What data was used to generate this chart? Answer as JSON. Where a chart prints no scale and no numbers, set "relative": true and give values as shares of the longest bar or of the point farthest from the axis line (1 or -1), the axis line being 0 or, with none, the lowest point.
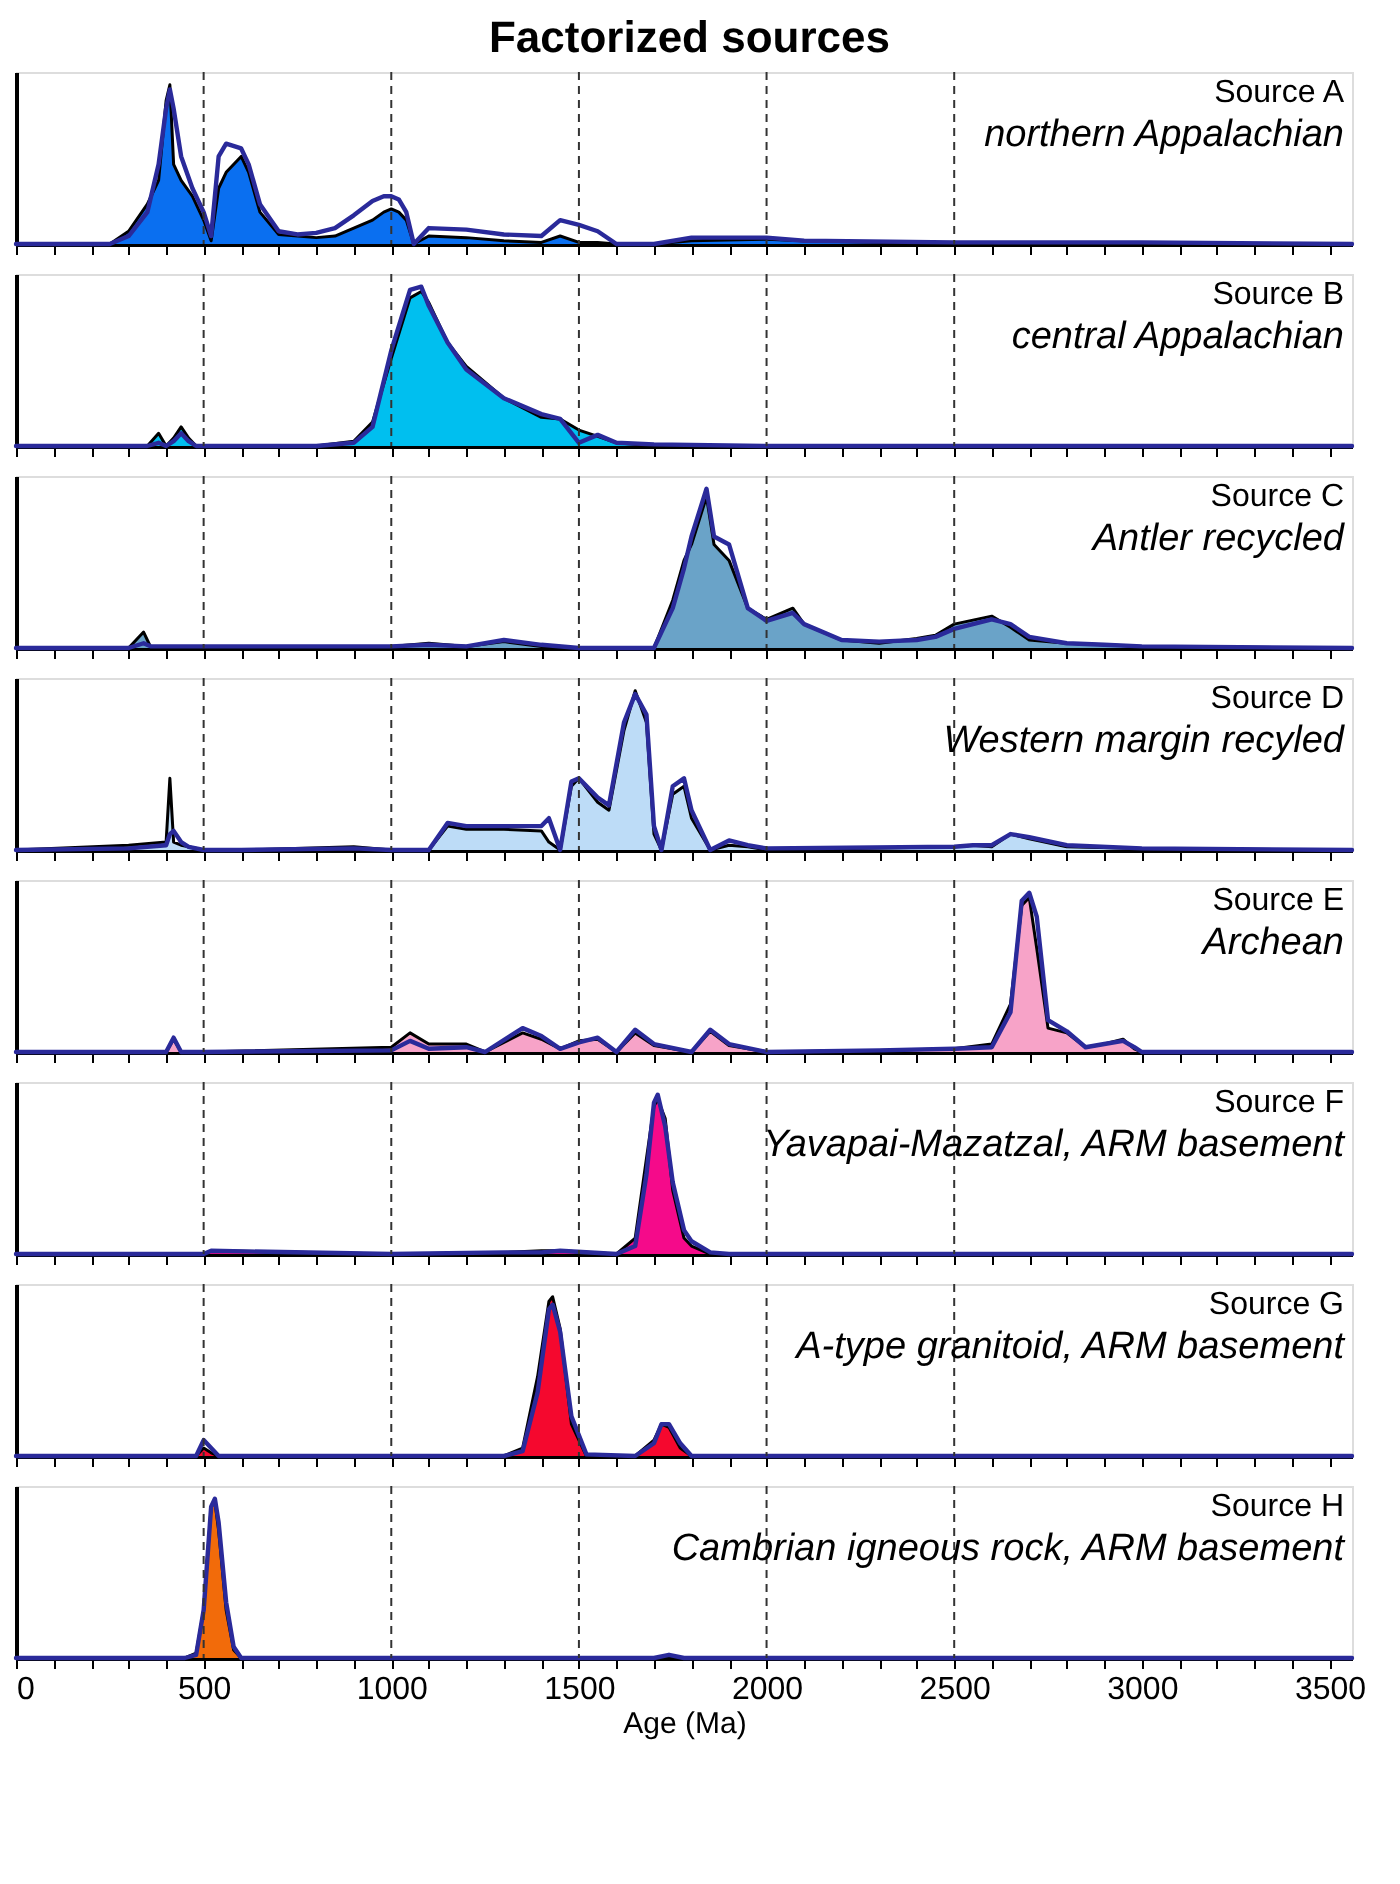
{
  "chart_data": [
    {
      "type": "area",
      "relative": true,
      "title": "Source A",
      "subtitle": "northern Appalachian",
      "annotations": [
        "Factorized sources"
      ],
      "tick_labels": false,
      "xlim": [
        0,
        3560
      ],
      "xticks": [
        0,
        {
          "value": 100,
          "label": null
        },
        {
          "value": 200,
          "label": null
        },
        {
          "value": 300,
          "label": null
        },
        {
          "value": 400,
          "label": null
        },
        500,
        {
          "value": 600,
          "label": null
        },
        {
          "value": 700,
          "label": null
        },
        {
          "value": 800,
          "label": null
        },
        {
          "value": 900,
          "label": null
        },
        1000,
        {
          "value": 1100,
          "label": null
        },
        {
          "value": 1200,
          "label": null
        },
        {
          "value": 1300,
          "label": null
        },
        {
          "value": 1400,
          "label": null
        },
        1500,
        {
          "value": 1600,
          "label": null
        },
        {
          "value": 1700,
          "label": null
        },
        {
          "value": 1800,
          "label": null
        },
        {
          "value": 1900,
          "label": null
        },
        2000,
        {
          "value": 2100,
          "label": null
        },
        {
          "value": 2200,
          "label": null
        },
        {
          "value": 2300,
          "label": null
        },
        {
          "value": 2400,
          "label": null
        },
        2500,
        {
          "value": 2600,
          "label": null
        },
        {
          "value": 2700,
          "label": null
        },
        {
          "value": 2800,
          "label": null
        },
        {
          "value": 2900,
          "label": null
        },
        3000,
        {
          "value": 3100,
          "label": null
        },
        {
          "value": 3200,
          "label": null
        },
        {
          "value": 3300,
          "label": null
        },
        {
          "value": 3400,
          "label": null
        },
        3500
      ],
      "ref_lines": [
        {
          "axis": "x",
          "value": 500,
          "line_style": "dashed"
        },
        {
          "axis": "x",
          "value": 1000,
          "line_style": "dashed"
        },
        {
          "axis": "x",
          "value": 1500,
          "line_style": "dashed"
        },
        {
          "axis": "x",
          "value": 2000,
          "line_style": "dashed"
        },
        {
          "axis": "x",
          "value": 2500,
          "line_style": "dashed"
        }
      ],
      "x": [
        0,
        250,
        300,
        350,
        380,
        400,
        410,
        420,
        440,
        470,
        500,
        520,
        540,
        560,
        600,
        620,
        650,
        700,
        750,
        800,
        850,
        900,
        950,
        980,
        1000,
        1020,
        1040,
        1060,
        1100,
        1200,
        1300,
        1400,
        1450,
        1500,
        1550,
        1600,
        1700,
        1800,
        2000,
        2100,
        2500,
        3000,
        3560
      ],
      "series": [
        {
          "type": "area",
          "color": "#0a6ff0",
          "values": [
            0,
            0,
            0.08,
            0.25,
            0.4,
            0.9,
            1.0,
            0.5,
            0.4,
            0.3,
            0.15,
            0.02,
            0.35,
            0.45,
            0.55,
            0.45,
            0.2,
            0.06,
            0.05,
            0.04,
            0.05,
            0.1,
            0.15,
            0.2,
            0.22,
            0.2,
            0.15,
            0,
            0.05,
            0.04,
            0.02,
            0.01,
            0.05,
            0.01,
            0.01,
            0,
            0,
            0.02,
            0.03,
            0.02,
            0,
            0,
            0
          ]
        },
        {
          "type": "line",
          "color": "#2a2a9a",
          "values": [
            0,
            0,
            0.05,
            0.2,
            0.5,
            0.85,
            0.97,
            0.85,
            0.55,
            0.35,
            0.2,
            0.05,
            0.55,
            0.63,
            0.6,
            0.5,
            0.25,
            0.08,
            0.06,
            0.07,
            0.1,
            0.18,
            0.27,
            0.3,
            0.3,
            0.28,
            0.2,
            0,
            0.1,
            0.09,
            0.06,
            0.05,
            0.15,
            0.12,
            0.08,
            0,
            0,
            0.04,
            0.04,
            0.02,
            0.01,
            0.01,
            0
          ]
        }
      ]
    },
    {
      "type": "area",
      "relative": true,
      "title": "Source B",
      "subtitle": "central Appalachian",
      "tick_labels": false,
      "xlim": [
        0,
        3560
      ],
      "xticks": [
        0,
        {
          "value": 100,
          "label": null
        },
        {
          "value": 200,
          "label": null
        },
        {
          "value": 300,
          "label": null
        },
        {
          "value": 400,
          "label": null
        },
        500,
        {
          "value": 600,
          "label": null
        },
        {
          "value": 700,
          "label": null
        },
        {
          "value": 800,
          "label": null
        },
        {
          "value": 900,
          "label": null
        },
        1000,
        {
          "value": 1100,
          "label": null
        },
        {
          "value": 1200,
          "label": null
        },
        {
          "value": 1300,
          "label": null
        },
        {
          "value": 1400,
          "label": null
        },
        1500,
        {
          "value": 1600,
          "label": null
        },
        {
          "value": 1700,
          "label": null
        },
        {
          "value": 1800,
          "label": null
        },
        {
          "value": 1900,
          "label": null
        },
        2000,
        {
          "value": 2100,
          "label": null
        },
        {
          "value": 2200,
          "label": null
        },
        {
          "value": 2300,
          "label": null
        },
        {
          "value": 2400,
          "label": null
        },
        2500,
        {
          "value": 2600,
          "label": null
        },
        {
          "value": 2700,
          "label": null
        },
        {
          "value": 2800,
          "label": null
        },
        {
          "value": 2900,
          "label": null
        },
        3000,
        {
          "value": 3100,
          "label": null
        },
        {
          "value": 3200,
          "label": null
        },
        {
          "value": 3300,
          "label": null
        },
        {
          "value": 3400,
          "label": null
        },
        3500
      ],
      "ref_lines": [
        {
          "axis": "x",
          "value": 500,
          "line_style": "dashed"
        },
        {
          "axis": "x",
          "value": 1000,
          "line_style": "dashed"
        },
        {
          "axis": "x",
          "value": 1500,
          "line_style": "dashed"
        },
        {
          "axis": "x",
          "value": 2000,
          "line_style": "dashed"
        },
        {
          "axis": "x",
          "value": 2500,
          "line_style": "dashed"
        }
      ],
      "x": [
        0,
        350,
        380,
        400,
        420,
        440,
        460,
        480,
        500,
        800,
        900,
        950,
        1000,
        1050,
        1080,
        1100,
        1150,
        1200,
        1300,
        1400,
        1450,
        1500,
        1550,
        1600,
        1700,
        2000,
        3560
      ],
      "series": [
        {
          "type": "area",
          "color": "#00bfef",
          "values": [
            0,
            0,
            0.08,
            0,
            0.05,
            0.12,
            0.05,
            0,
            0,
            0,
            0.03,
            0.15,
            0.55,
            0.93,
            0.97,
            0.9,
            0.65,
            0.5,
            0.3,
            0.18,
            0.17,
            0.1,
            0.06,
            0.02,
            0,
            0,
            0
          ]
        },
        {
          "type": "line",
          "color": "#2a2a9a",
          "values": [
            0,
            0,
            0.02,
            0,
            0.03,
            0.08,
            0.03,
            0,
            0,
            0,
            0.02,
            0.12,
            0.6,
            0.98,
            1.0,
            0.88,
            0.65,
            0.48,
            0.3,
            0.2,
            0.17,
            0.02,
            0.07,
            0.02,
            0.01,
            0,
            0
          ]
        }
      ]
    },
    {
      "type": "area",
      "relative": true,
      "title": "Source C",
      "subtitle": "Antler recycled",
      "tick_labels": false,
      "xlim": [
        0,
        3560
      ],
      "xticks": [
        0,
        {
          "value": 100,
          "label": null
        },
        {
          "value": 200,
          "label": null
        },
        {
          "value": 300,
          "label": null
        },
        {
          "value": 400,
          "label": null
        },
        500,
        {
          "value": 600,
          "label": null
        },
        {
          "value": 700,
          "label": null
        },
        {
          "value": 800,
          "label": null
        },
        {
          "value": 900,
          "label": null
        },
        1000,
        {
          "value": 1100,
          "label": null
        },
        {
          "value": 1200,
          "label": null
        },
        {
          "value": 1300,
          "label": null
        },
        {
          "value": 1400,
          "label": null
        },
        1500,
        {
          "value": 1600,
          "label": null
        },
        {
          "value": 1700,
          "label": null
        },
        {
          "value": 1800,
          "label": null
        },
        {
          "value": 1900,
          "label": null
        },
        2000,
        {
          "value": 2100,
          "label": null
        },
        {
          "value": 2200,
          "label": null
        },
        {
          "value": 2300,
          "label": null
        },
        {
          "value": 2400,
          "label": null
        },
        2500,
        {
          "value": 2600,
          "label": null
        },
        {
          "value": 2700,
          "label": null
        },
        {
          "value": 2800,
          "label": null
        },
        {
          "value": 2900,
          "label": null
        },
        3000,
        {
          "value": 3100,
          "label": null
        },
        {
          "value": 3200,
          "label": null
        },
        {
          "value": 3300,
          "label": null
        },
        {
          "value": 3400,
          "label": null
        },
        3500
      ],
      "ref_lines": [
        {
          "axis": "x",
          "value": 500,
          "line_style": "dashed"
        },
        {
          "axis": "x",
          "value": 1000,
          "line_style": "dashed"
        },
        {
          "axis": "x",
          "value": 1500,
          "line_style": "dashed"
        },
        {
          "axis": "x",
          "value": 2000,
          "line_style": "dashed"
        },
        {
          "axis": "x",
          "value": 2500,
          "line_style": "dashed"
        }
      ],
      "x": [
        0,
        300,
        340,
        360,
        500,
        1000,
        1100,
        1200,
        1300,
        1400,
        1500,
        1700,
        1750,
        1780,
        1800,
        1840,
        1860,
        1900,
        1950,
        2000,
        2070,
        2100,
        2200,
        2300,
        2400,
        2450,
        2500,
        2600,
        2650,
        2700,
        2800,
        2900,
        3000,
        3560
      ],
      "series": [
        {
          "type": "area",
          "color": "#6aa3c8",
          "values": [
            0,
            0,
            0.1,
            0,
            0.01,
            0.01,
            0.03,
            0.01,
            0.04,
            0.01,
            0,
            0,
            0.3,
            0.55,
            0.65,
            0.95,
            0.65,
            0.55,
            0.25,
            0.18,
            0.25,
            0.15,
            0.05,
            0.03,
            0.06,
            0.08,
            0.15,
            0.2,
            0.13,
            0.05,
            0.03,
            0.02,
            0.01,
            0
          ]
        },
        {
          "type": "line",
          "color": "#2a2a9a",
          "values": [
            0,
            0,
            0.03,
            0.01,
            0.01,
            0.01,
            0.02,
            0.01,
            0.05,
            0.02,
            0,
            0,
            0.25,
            0.5,
            0.7,
            1.0,
            0.7,
            0.65,
            0.25,
            0.17,
            0.22,
            0.15,
            0.05,
            0.04,
            0.05,
            0.07,
            0.12,
            0.18,
            0.15,
            0.07,
            0.03,
            0.02,
            0.01,
            0
          ]
        }
      ]
    },
    {
      "type": "area",
      "relative": true,
      "title": "Source D",
      "subtitle": "Western margin recyled",
      "tick_labels": false,
      "xlim": [
        0,
        3560
      ],
      "xticks": [
        0,
        {
          "value": 100,
          "label": null
        },
        {
          "value": 200,
          "label": null
        },
        {
          "value": 300,
          "label": null
        },
        {
          "value": 400,
          "label": null
        },
        500,
        {
          "value": 600,
          "label": null
        },
        {
          "value": 700,
          "label": null
        },
        {
          "value": 800,
          "label": null
        },
        {
          "value": 900,
          "label": null
        },
        1000,
        {
          "value": 1100,
          "label": null
        },
        {
          "value": 1200,
          "label": null
        },
        {
          "value": 1300,
          "label": null
        },
        {
          "value": 1400,
          "label": null
        },
        1500,
        {
          "value": 1600,
          "label": null
        },
        {
          "value": 1700,
          "label": null
        },
        {
          "value": 1800,
          "label": null
        },
        {
          "value": 1900,
          "label": null
        },
        2000,
        {
          "value": 2100,
          "label": null
        },
        {
          "value": 2200,
          "label": null
        },
        {
          "value": 2300,
          "label": null
        },
        {
          "value": 2400,
          "label": null
        },
        2500,
        {
          "value": 2600,
          "label": null
        },
        {
          "value": 2700,
          "label": null
        },
        {
          "value": 2800,
          "label": null
        },
        {
          "value": 2900,
          "label": null
        },
        3000,
        {
          "value": 3100,
          "label": null
        },
        {
          "value": 3200,
          "label": null
        },
        {
          "value": 3300,
          "label": null
        },
        {
          "value": 3400,
          "label": null
        },
        3500
      ],
      "ref_lines": [
        {
          "axis": "x",
          "value": 500,
          "line_style": "dashed"
        },
        {
          "axis": "x",
          "value": 1000,
          "line_style": "dashed"
        },
        {
          "axis": "x",
          "value": 1500,
          "line_style": "dashed"
        },
        {
          "axis": "x",
          "value": 2000,
          "line_style": "dashed"
        },
        {
          "axis": "x",
          "value": 2500,
          "line_style": "dashed"
        }
      ],
      "x": [
        0,
        300,
        400,
        410,
        420,
        440,
        460,
        500,
        600,
        900,
        1000,
        1100,
        1150,
        1200,
        1300,
        1400,
        1420,
        1450,
        1480,
        1500,
        1550,
        1580,
        1620,
        1650,
        1680,
        1700,
        1720,
        1750,
        1780,
        1800,
        1850,
        1900,
        1950,
        2000,
        2500,
        2550,
        2600,
        2650,
        2700,
        2800,
        3000,
        3560
      ],
      "series": [
        {
          "type": "area",
          "color": "#bddcf7",
          "values": [
            0,
            0.03,
            0.05,
            0.45,
            0.05,
            0.03,
            0.02,
            0,
            0,
            0.02,
            0,
            0,
            0.15,
            0.13,
            0.13,
            0.12,
            0.05,
            0,
            0.4,
            0.45,
            0.3,
            0.25,
            0.75,
            1.0,
            0.8,
            0.1,
            0,
            0.35,
            0.4,
            0.2,
            0,
            0.03,
            0.02,
            0,
            0.02,
            0.03,
            0.02,
            0.1,
            0.07,
            0.02,
            0.01,
            0
          ]
        },
        {
          "type": "line",
          "color": "#2a2a9a",
          "values": [
            0,
            0.01,
            0.03,
            0.1,
            0.12,
            0.05,
            0.02,
            0,
            0,
            0.01,
            0,
            0,
            0.17,
            0.15,
            0.15,
            0.15,
            0.2,
            0,
            0.43,
            0.45,
            0.33,
            0.28,
            0.8,
            0.98,
            0.85,
            0.15,
            0,
            0.4,
            0.45,
            0.25,
            0,
            0.06,
            0.03,
            0.01,
            0.02,
            0.03,
            0.03,
            0.1,
            0.08,
            0.03,
            0.01,
            0
          ]
        }
      ]
    },
    {
      "type": "area",
      "relative": true,
      "title": "Source E",
      "subtitle": "Archean",
      "tick_labels": false,
      "xlim": [
        0,
        3560
      ],
      "xticks": [
        0,
        {
          "value": 100,
          "label": null
        },
        {
          "value": 200,
          "label": null
        },
        {
          "value": 300,
          "label": null
        },
        {
          "value": 400,
          "label": null
        },
        500,
        {
          "value": 600,
          "label": null
        },
        {
          "value": 700,
          "label": null
        },
        {
          "value": 800,
          "label": null
        },
        {
          "value": 900,
          "label": null
        },
        1000,
        {
          "value": 1100,
          "label": null
        },
        {
          "value": 1200,
          "label": null
        },
        {
          "value": 1300,
          "label": null
        },
        {
          "value": 1400,
          "label": null
        },
        1500,
        {
          "value": 1600,
          "label": null
        },
        {
          "value": 1700,
          "label": null
        },
        {
          "value": 1800,
          "label": null
        },
        {
          "value": 1900,
          "label": null
        },
        2000,
        {
          "value": 2100,
          "label": null
        },
        {
          "value": 2200,
          "label": null
        },
        {
          "value": 2300,
          "label": null
        },
        {
          "value": 2400,
          "label": null
        },
        2500,
        {
          "value": 2600,
          "label": null
        },
        {
          "value": 2700,
          "label": null
        },
        {
          "value": 2800,
          "label": null
        },
        {
          "value": 2900,
          "label": null
        },
        3000,
        {
          "value": 3100,
          "label": null
        },
        {
          "value": 3200,
          "label": null
        },
        {
          "value": 3300,
          "label": null
        },
        {
          "value": 3400,
          "label": null
        },
        3500
      ],
      "ref_lines": [
        {
          "axis": "x",
          "value": 500,
          "line_style": "dashed"
        },
        {
          "axis": "x",
          "value": 1000,
          "line_style": "dashed"
        },
        {
          "axis": "x",
          "value": 1500,
          "line_style": "dashed"
        },
        {
          "axis": "x",
          "value": 2000,
          "line_style": "dashed"
        },
        {
          "axis": "x",
          "value": 2500,
          "line_style": "dashed"
        }
      ],
      "x": [
        0,
        400,
        420,
        440,
        500,
        1000,
        1050,
        1100,
        1200,
        1250,
        1350,
        1400,
        1450,
        1500,
        1550,
        1600,
        1650,
        1700,
        1800,
        1850,
        1900,
        2000,
        2300,
        2500,
        2600,
        2650,
        2680,
        2700,
        2720,
        2750,
        2800,
        2850,
        2900,
        2950,
        2980,
        3000,
        3560
      ],
      "series": [
        {
          "type": "area",
          "color": "#f7a3c8",
          "values": [
            0,
            0,
            0.08,
            0,
            0,
            0.03,
            0.12,
            0.05,
            0.05,
            0,
            0.12,
            0.08,
            0.02,
            0.07,
            0.08,
            0,
            0.12,
            0.04,
            0,
            0.13,
            0.04,
            0,
            0.01,
            0.02,
            0.05,
            0.3,
            0.92,
            0.97,
            0.65,
            0.15,
            0.12,
            0.03,
            0.05,
            0.08,
            0.02,
            0,
            0
          ]
        },
        {
          "type": "line",
          "color": "#2a2a9a",
          "values": [
            0,
            0,
            0.09,
            0,
            0,
            0.01,
            0.07,
            0.02,
            0.03,
            0,
            0.15,
            0.1,
            0.02,
            0.06,
            0.09,
            0,
            0.14,
            0.05,
            0,
            0.14,
            0.05,
            0,
            0.01,
            0.02,
            0.03,
            0.25,
            0.95,
            1.0,
            0.85,
            0.2,
            0.13,
            0.03,
            0.05,
            0.07,
            0.03,
            0,
            0
          ]
        }
      ]
    },
    {
      "type": "area",
      "relative": true,
      "title": "Source F",
      "subtitle": "Yavapai-Mazatzal, ARM basement",
      "tick_labels": false,
      "xlim": [
        0,
        3560
      ],
      "xticks": [
        0,
        {
          "value": 100,
          "label": null
        },
        {
          "value": 200,
          "label": null
        },
        {
          "value": 300,
          "label": null
        },
        {
          "value": 400,
          "label": null
        },
        500,
        {
          "value": 600,
          "label": null
        },
        {
          "value": 700,
          "label": null
        },
        {
          "value": 800,
          "label": null
        },
        {
          "value": 900,
          "label": null
        },
        1000,
        {
          "value": 1100,
          "label": null
        },
        {
          "value": 1200,
          "label": null
        },
        {
          "value": 1300,
          "label": null
        },
        {
          "value": 1400,
          "label": null
        },
        1500,
        {
          "value": 1600,
          "label": null
        },
        {
          "value": 1700,
          "label": null
        },
        {
          "value": 1800,
          "label": null
        },
        {
          "value": 1900,
          "label": null
        },
        2000,
        {
          "value": 2100,
          "label": null
        },
        {
          "value": 2200,
          "label": null
        },
        {
          "value": 2300,
          "label": null
        },
        {
          "value": 2400,
          "label": null
        },
        2500,
        {
          "value": 2600,
          "label": null
        },
        {
          "value": 2700,
          "label": null
        },
        {
          "value": 2800,
          "label": null
        },
        {
          "value": 2900,
          "label": null
        },
        3000,
        {
          "value": 3100,
          "label": null
        },
        {
          "value": 3200,
          "label": null
        },
        {
          "value": 3300,
          "label": null
        },
        {
          "value": 3400,
          "label": null
        },
        3500
      ],
      "ref_lines": [
        {
          "axis": "x",
          "value": 500,
          "line_style": "dashed"
        },
        {
          "axis": "x",
          "value": 1000,
          "line_style": "dashed"
        },
        {
          "axis": "x",
          "value": 1500,
          "line_style": "dashed"
        },
        {
          "axis": "x",
          "value": 2000,
          "line_style": "dashed"
        },
        {
          "axis": "x",
          "value": 2500,
          "line_style": "dashed"
        }
      ],
      "x": [
        0,
        500,
        520,
        1000,
        1300,
        1400,
        1450,
        1600,
        1650,
        1680,
        1700,
        1710,
        1730,
        1750,
        1780,
        1800,
        1850,
        1900,
        3560
      ],
      "series": [
        {
          "type": "area",
          "color": "#f50a8a",
          "values": [
            0,
            0,
            0.02,
            0,
            0.01,
            0.02,
            0.02,
            0,
            0.1,
            0.6,
            0.93,
            0.97,
            0.85,
            0.4,
            0.1,
            0.05,
            0,
            0,
            0
          ]
        },
        {
          "type": "line",
          "color": "#2a2a9a",
          "values": [
            0,
            0,
            0.02,
            0,
            0.01,
            0.01,
            0.02,
            0,
            0.05,
            0.5,
            0.95,
            1.0,
            0.8,
            0.45,
            0.15,
            0.08,
            0.01,
            0,
            0
          ]
        }
      ]
    },
    {
      "type": "area",
      "relative": true,
      "title": "Source G",
      "subtitle": "A-type granitoid, ARM basement",
      "tick_labels": false,
      "xlim": [
        0,
        3560
      ],
      "xticks": [
        0,
        {
          "value": 100,
          "label": null
        },
        {
          "value": 200,
          "label": null
        },
        {
          "value": 300,
          "label": null
        },
        {
          "value": 400,
          "label": null
        },
        500,
        {
          "value": 600,
          "label": null
        },
        {
          "value": 700,
          "label": null
        },
        {
          "value": 800,
          "label": null
        },
        {
          "value": 900,
          "label": null
        },
        1000,
        {
          "value": 1100,
          "label": null
        },
        {
          "value": 1200,
          "label": null
        },
        {
          "value": 1300,
          "label": null
        },
        {
          "value": 1400,
          "label": null
        },
        1500,
        {
          "value": 1600,
          "label": null
        },
        {
          "value": 1700,
          "label": null
        },
        {
          "value": 1800,
          "label": null
        },
        {
          "value": 1900,
          "label": null
        },
        2000,
        {
          "value": 2100,
          "label": null
        },
        {
          "value": 2200,
          "label": null
        },
        {
          "value": 2300,
          "label": null
        },
        {
          "value": 2400,
          "label": null
        },
        2500,
        {
          "value": 2600,
          "label": null
        },
        {
          "value": 2700,
          "label": null
        },
        {
          "value": 2800,
          "label": null
        },
        {
          "value": 2900,
          "label": null
        },
        3000,
        {
          "value": 3100,
          "label": null
        },
        {
          "value": 3200,
          "label": null
        },
        {
          "value": 3300,
          "label": null
        },
        {
          "value": 3400,
          "label": null
        },
        3500
      ],
      "ref_lines": [
        {
          "axis": "x",
          "value": 500,
          "line_style": "dashed"
        },
        {
          "axis": "x",
          "value": 1000,
          "line_style": "dashed"
        },
        {
          "axis": "x",
          "value": 1500,
          "line_style": "dashed"
        },
        {
          "axis": "x",
          "value": 2000,
          "line_style": "dashed"
        },
        {
          "axis": "x",
          "value": 2500,
          "line_style": "dashed"
        }
      ],
      "x": [
        0,
        480,
        500,
        520,
        540,
        1000,
        1300,
        1350,
        1390,
        1420,
        1430,
        1450,
        1480,
        1520,
        1650,
        1700,
        1720,
        1740,
        1770,
        1800,
        3560
      ],
      "series": [
        {
          "type": "area",
          "color": "#f5082e",
          "values": [
            0,
            0,
            0.05,
            0.02,
            0,
            0,
            0,
            0.05,
            0.5,
            0.97,
            1.0,
            0.8,
            0.2,
            0,
            0,
            0.1,
            0.2,
            0.18,
            0.05,
            0,
            0
          ]
        },
        {
          "type": "line",
          "color": "#2a2a9a",
          "values": [
            0,
            0,
            0.1,
            0.05,
            0,
            0,
            0,
            0.03,
            0.4,
            0.92,
            0.95,
            0.78,
            0.25,
            0.01,
            0,
            0.08,
            0.2,
            0.2,
            0.08,
            0,
            0
          ]
        }
      ]
    },
    {
      "type": "area",
      "relative": true,
      "title": "Source H",
      "subtitle": "Cambrian igneous rock, ARM basement",
      "tick_labels": "x",
      "xlabel": "Age (Ma)",
      "xlim": [
        0,
        3560
      ],
      "xticks": [
        0,
        {
          "value": 100,
          "label": null
        },
        {
          "value": 200,
          "label": null
        },
        {
          "value": 300,
          "label": null
        },
        {
          "value": 400,
          "label": null
        },
        500,
        {
          "value": 600,
          "label": null
        },
        {
          "value": 700,
          "label": null
        },
        {
          "value": 800,
          "label": null
        },
        {
          "value": 900,
          "label": null
        },
        1000,
        {
          "value": 1100,
          "label": null
        },
        {
          "value": 1200,
          "label": null
        },
        {
          "value": 1300,
          "label": null
        },
        {
          "value": 1400,
          "label": null
        },
        1500,
        {
          "value": 1600,
          "label": null
        },
        {
          "value": 1700,
          "label": null
        },
        {
          "value": 1800,
          "label": null
        },
        {
          "value": 1900,
          "label": null
        },
        2000,
        {
          "value": 2100,
          "label": null
        },
        {
          "value": 2200,
          "label": null
        },
        {
          "value": 2300,
          "label": null
        },
        {
          "value": 2400,
          "label": null
        },
        2500,
        {
          "value": 2600,
          "label": null
        },
        {
          "value": 2700,
          "label": null
        },
        {
          "value": 2800,
          "label": null
        },
        {
          "value": 2900,
          "label": null
        },
        3000,
        {
          "value": 3100,
          "label": null
        },
        {
          "value": 3200,
          "label": null
        },
        {
          "value": 3300,
          "label": null
        },
        {
          "value": 3400,
          "label": null
        },
        3500
      ],
      "ref_lines": [
        {
          "axis": "x",
          "value": 500,
          "line_style": "dashed"
        },
        {
          "axis": "x",
          "value": 1000,
          "line_style": "dashed"
        },
        {
          "axis": "x",
          "value": 1500,
          "line_style": "dashed"
        },
        {
          "axis": "x",
          "value": 2000,
          "line_style": "dashed"
        },
        {
          "axis": "x",
          "value": 2500,
          "line_style": "dashed"
        }
      ],
      "x": [
        0,
        450,
        480,
        500,
        520,
        530,
        540,
        560,
        580,
        600,
        1700,
        1740,
        1780,
        3560
      ],
      "series": [
        {
          "type": "area",
          "color": "#f26b0a",
          "values": [
            0,
            0,
            0.03,
            0.3,
            0.95,
            0.98,
            0.8,
            0.3,
            0.05,
            0,
            0,
            0.01,
            0,
            0
          ]
        },
        {
          "type": "line",
          "color": "#2a2a9a",
          "values": [
            0,
            0,
            0.02,
            0.3,
            0.95,
            1.0,
            0.85,
            0.35,
            0.07,
            0,
            0,
            0.02,
            0,
            0
          ]
        }
      ]
    }
  ]
}
